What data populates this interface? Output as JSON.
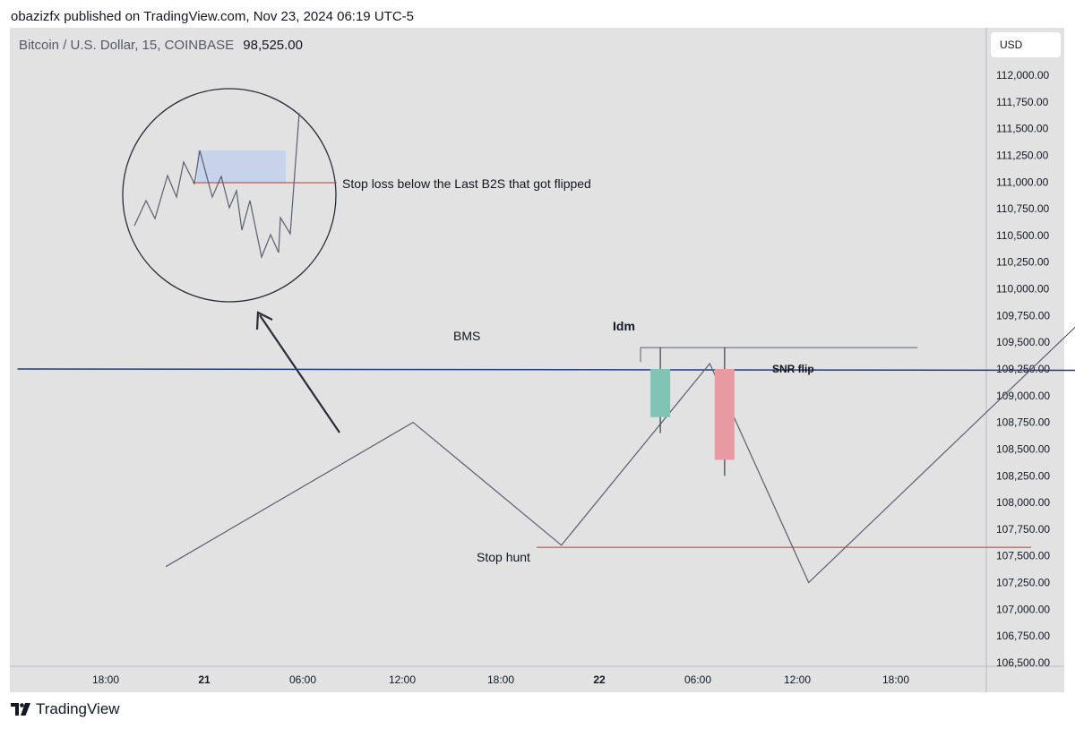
{
  "header": {
    "published_text": "obazizfx published on TradingView.com, Nov 23, 2024 06:19 UTC-5"
  },
  "symbol": {
    "title": "Bitcoin / U.S. Dollar, 15, COINBASE",
    "last_price": "98,525.00"
  },
  "currency_badge": "USD",
  "brand": {
    "name": "TradingView",
    "logo_icon": "tradingview-logo-icon"
  },
  "colors": {
    "background": "#e2e2e2",
    "price_line": "#5c5f6b",
    "snr_line": "#1f3a8a",
    "level_red": "#c0392b",
    "bull_candle": "#7fc4b4",
    "bear_candle": "#e89aa2",
    "zone_blue": "#c7d3ea"
  },
  "chart_data": {
    "type": "line",
    "title": "Bitcoin / U.S. Dollar, 15, COINBASE",
    "xlabel": "",
    "ylabel": "",
    "grid": false,
    "ylim": [
      106500,
      112000
    ],
    "y_ticks": [
      "112,000.00",
      "111,750.00",
      "111,500.00",
      "111,250.00",
      "111,000.00",
      "110,750.00",
      "110,500.00",
      "110,250.00",
      "110,000.00",
      "109,750.00",
      "109,500.00",
      "109,250.00",
      "109,000.00",
      "108,750.00",
      "108,500.00",
      "108,250.00",
      "108,000.00",
      "107,750.00",
      "107,500.00",
      "107,250.00",
      "107,000.00",
      "106,750.00",
      "106,500.00"
    ],
    "x_ticks": [
      {
        "label": "18:00",
        "bold": false
      },
      {
        "label": "21",
        "bold": true
      },
      {
        "label": "06:00",
        "bold": false
      },
      {
        "label": "12:00",
        "bold": false
      },
      {
        "label": "18:00",
        "bold": false
      },
      {
        "label": "22",
        "bold": true
      },
      {
        "label": "06:00",
        "bold": false
      },
      {
        "label": "12:00",
        "bold": false
      },
      {
        "label": "18:00",
        "bold": false
      }
    ],
    "series": [
      {
        "x": [
          3,
          8,
          11,
          14,
          16,
          24,
          28,
          31,
          36,
          42
        ],
        "y": [
          107400,
          108750,
          107600,
          109300,
          107250,
          110800,
          109750,
          111300,
          108950,
          112000
        ]
      }
    ],
    "candles": [
      {
        "x": 13.0,
        "open": 108800,
        "close": 109250,
        "high": 109450,
        "low": 108650
      },
      {
        "x": 14.3,
        "open": 109250,
        "close": 108400,
        "high": 109450,
        "low": 108250
      }
    ],
    "levels": [
      {
        "label": "SNR flip",
        "x0": 0,
        "x1": 34,
        "y0": 109250,
        "y1": 109230
      },
      {
        "label": "BMS",
        "x0": 12.6,
        "x1": 18.2,
        "y0": 109450,
        "y1": 109450
      },
      {
        "label": "Idm",
        "x0": 28,
        "x1": 31.5,
        "y0": 109750,
        "y1": 109750
      },
      {
        "label": "Stop hunt",
        "x0": 10.5,
        "x1": 20.5,
        "y0": 107580,
        "y1": 107580
      }
    ],
    "annotations": {
      "bms": "BMS",
      "snr_flip": "SNR flip",
      "idm": "Idm",
      "stop_hunt": "Stop hunt",
      "stop_loss_note": "Stop loss below the Last B2S that got flipped"
    }
  }
}
